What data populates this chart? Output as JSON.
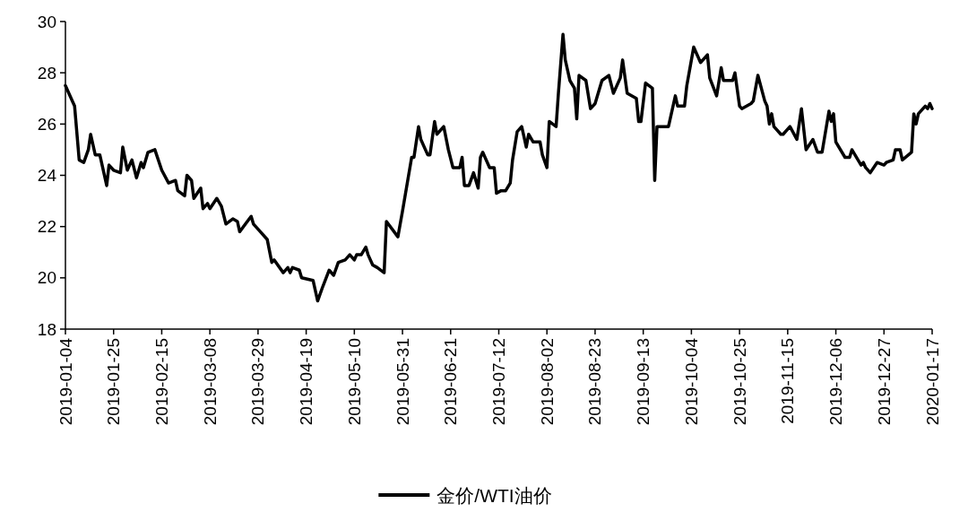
{
  "chart_data": {
    "type": "line",
    "legend": "bottom",
    "grid": false,
    "marker": "none",
    "line_style": "solid",
    "xlim": [
      "2019-01-04",
      "2020-01-17"
    ],
    "xticks": [
      "2019-01-04",
      "2019-01-25",
      "2019-02-15",
      "2019-03-08",
      "2019-03-29",
      "2019-04-19",
      "2019-05-10",
      "2019-05-31",
      "2019-06-21",
      "2019-07-12",
      "2019-08-02",
      "2019-08-23",
      "2019-09-13",
      "2019-10-04",
      "2019-10-25",
      "2019-11-15",
      "2019-12-06",
      "2019-12-27",
      "2020-01-17"
    ],
    "ylim": [
      18,
      30
    ],
    "yticks": [
      18,
      20,
      22,
      24,
      26,
      28,
      30
    ],
    "x": [
      "2019-01-04",
      "2019-01-08",
      "2019-01-10",
      "2019-01-12",
      "2019-01-14",
      "2019-01-15",
      "2019-01-17",
      "2019-01-19",
      "2019-01-22",
      "2019-01-23",
      "2019-01-25",
      "2019-01-28",
      "2019-01-29",
      "2019-01-31",
      "2019-02-02",
      "2019-02-04",
      "2019-02-06",
      "2019-02-07",
      "2019-02-09",
      "2019-02-12",
      "2019-02-15",
      "2019-02-18",
      "2019-02-21",
      "2019-02-22",
      "2019-02-25",
      "2019-02-26",
      "2019-02-28",
      "2019-03-01",
      "2019-03-04",
      "2019-03-05",
      "2019-03-07",
      "2019-03-08",
      "2019-03-11",
      "2019-03-13",
      "2019-03-15",
      "2019-03-18",
      "2019-03-20",
      "2019-03-21",
      "2019-03-26",
      "2019-03-27",
      "2019-03-30",
      "2019-04-02",
      "2019-04-04",
      "2019-04-05",
      "2019-04-09",
      "2019-04-11",
      "2019-04-12",
      "2019-04-13",
      "2019-04-16",
      "2019-04-17",
      "2019-04-22",
      "2019-04-24",
      "2019-04-26",
      "2019-04-29",
      "2019-05-01",
      "2019-05-03",
      "2019-05-06",
      "2019-05-08",
      "2019-05-10",
      "2019-05-11",
      "2019-05-13",
      "2019-05-15",
      "2019-05-16",
      "2019-05-18",
      "2019-05-20",
      "2019-05-23",
      "2019-05-24",
      "2019-05-29",
      "2019-05-31",
      "2019-06-04",
      "2019-06-05",
      "2019-06-07",
      "2019-06-08",
      "2019-06-11",
      "2019-06-12",
      "2019-06-14",
      "2019-06-15",
      "2019-06-18",
      "2019-06-20",
      "2019-06-22",
      "2019-06-25",
      "2019-06-26",
      "2019-06-27",
      "2019-06-29",
      "2019-07-01",
      "2019-07-03",
      "2019-07-04",
      "2019-07-05",
      "2019-07-08",
      "2019-07-10",
      "2019-07-11",
      "2019-07-13",
      "2019-07-15",
      "2019-07-17",
      "2019-07-18",
      "2019-07-20",
      "2019-07-22",
      "2019-07-24",
      "2019-07-25",
      "2019-07-27",
      "2019-07-30",
      "2019-07-31",
      "2019-08-02",
      "2019-08-03",
      "2019-08-06",
      "2019-08-07",
      "2019-08-09",
      "2019-08-10",
      "2019-08-12",
      "2019-08-14",
      "2019-08-15",
      "2019-08-16",
      "2019-08-19",
      "2019-08-21",
      "2019-08-23",
      "2019-08-26",
      "2019-08-29",
      "2019-08-31",
      "2019-09-03",
      "2019-09-04",
      "2019-09-06",
      "2019-09-10",
      "2019-09-11",
      "2019-09-12",
      "2019-09-14",
      "2019-09-17",
      "2019-09-18",
      "2019-09-19",
      "2019-09-24",
      "2019-09-27",
      "2019-09-28",
      "2019-10-01",
      "2019-10-02",
      "2019-10-05",
      "2019-10-08",
      "2019-10-11",
      "2019-10-12",
      "2019-10-15",
      "2019-10-17",
      "2019-10-18",
      "2019-10-22",
      "2019-10-23",
      "2019-10-25",
      "2019-10-26",
      "2019-10-30",
      "2019-10-31",
      "2019-11-02",
      "2019-11-05",
      "2019-11-06",
      "2019-11-07",
      "2019-11-08",
      "2019-11-09",
      "2019-11-12",
      "2019-11-13",
      "2019-11-16",
      "2019-11-19",
      "2019-11-21",
      "2019-11-23",
      "2019-11-26",
      "2019-11-28",
      "2019-11-30",
      "2019-12-03",
      "2019-12-04",
      "2019-12-05",
      "2019-12-06",
      "2019-12-10",
      "2019-12-12",
      "2019-12-13",
      "2019-12-17",
      "2019-12-18",
      "2019-12-19",
      "2019-12-21",
      "2019-12-24",
      "2019-12-27",
      "2019-12-28",
      "2019-12-31",
      "2020-01-01",
      "2020-01-03",
      "2020-01-04",
      "2020-01-08",
      "2020-01-09",
      "2020-01-10",
      "2020-01-11",
      "2020-01-13",
      "2020-01-14",
      "2020-01-15",
      "2020-01-16",
      "2020-01-17"
    ],
    "series": [
      {
        "name": "金价/WTI油价",
        "color": "#000000",
        "values": [
          27.5,
          26.7,
          24.6,
          24.5,
          25.0,
          25.6,
          24.8,
          24.8,
          23.6,
          24.4,
          24.2,
          24.1,
          25.1,
          24.2,
          24.6,
          23.9,
          24.5,
          24.3,
          24.9,
          25.0,
          24.2,
          23.7,
          23.8,
          23.4,
          23.2,
          24.0,
          23.8,
          23.1,
          23.5,
          22.7,
          22.9,
          22.7,
          23.1,
          22.8,
          22.1,
          22.3,
          22.2,
          21.8,
          22.4,
          22.1,
          21.8,
          21.5,
          20.6,
          20.7,
          20.2,
          20.4,
          20.2,
          20.4,
          20.3,
          20.0,
          19.9,
          19.1,
          19.6,
          20.3,
          20.1,
          20.6,
          20.7,
          20.9,
          20.7,
          20.9,
          20.9,
          21.2,
          20.9,
          20.5,
          20.4,
          20.2,
          22.2,
          21.6,
          22.6,
          24.7,
          24.7,
          25.9,
          25.4,
          24.8,
          24.8,
          26.1,
          25.6,
          25.9,
          25.0,
          24.3,
          24.3,
          24.7,
          23.6,
          23.6,
          24.1,
          23.5,
          24.7,
          24.9,
          24.3,
          24.3,
          23.3,
          23.4,
          23.4,
          23.7,
          24.6,
          25.7,
          25.9,
          25.1,
          25.6,
          25.3,
          25.3,
          24.8,
          24.3,
          26.1,
          25.9,
          27.2,
          29.5,
          28.5,
          27.7,
          27.4,
          26.2,
          27.9,
          27.7,
          26.6,
          26.8,
          27.7,
          27.9,
          27.2,
          27.8,
          28.5,
          27.2,
          27.0,
          26.1,
          26.1,
          27.6,
          27.4,
          23.8,
          25.9,
          25.9,
          27.1,
          26.7,
          26.7,
          27.5,
          29.0,
          28.4,
          28.7,
          27.8,
          27.1,
          28.2,
          27.7,
          27.7,
          28.0,
          26.7,
          26.6,
          26.8,
          26.9,
          27.9,
          26.9,
          26.7,
          26.0,
          26.4,
          25.9,
          25.6,
          25.6,
          25.9,
          25.4,
          26.6,
          25.0,
          25.4,
          24.9,
          24.9,
          26.5,
          26.1,
          26.4,
          25.3,
          24.7,
          24.7,
          25.0,
          24.4,
          24.5,
          24.3,
          24.1,
          24.5,
          24.4,
          24.5,
          24.6,
          25.0,
          25.0,
          24.6,
          24.9,
          26.4,
          26.0,
          26.4,
          26.6,
          26.7,
          26.6,
          26.8,
          26.6
        ]
      }
    ]
  }
}
